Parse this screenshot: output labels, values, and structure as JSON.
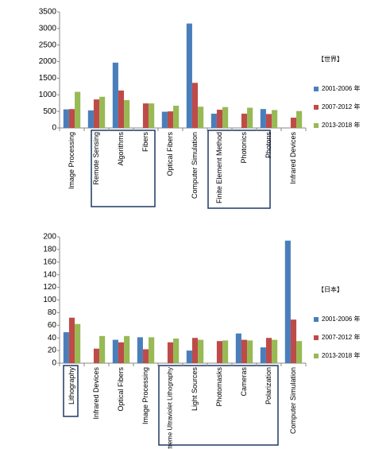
{
  "chart_data": [
    {
      "type": "bar",
      "legend_title": "【世界】",
      "legend": "right",
      "categories": [
        "Image Processing",
        "Remote Sensing",
        "Algorithms",
        "Fibers",
        "Optical Fibers",
        "Computer Simulation",
        "Finite Element Method",
        "Photonics",
        "Photons",
        "Infrared Devices"
      ],
      "series": [
        {
          "name": "2001-2006 年",
          "color": "#4a7ebb",
          "values": [
            560,
            530,
            1970,
            0,
            490,
            3150,
            430,
            0,
            570,
            0
          ]
        },
        {
          "name": "2007-2012 年",
          "color": "#be4b48",
          "values": [
            570,
            860,
            1130,
            740,
            500,
            1360,
            550,
            430,
            420,
            310
          ]
        },
        {
          "name": "2013-2018 年",
          "color": "#98b954",
          "values": [
            1090,
            940,
            840,
            740,
            670,
            640,
            630,
            610,
            540,
            510
          ]
        }
      ],
      "ylim": [
        0,
        3500
      ],
      "yticks": [
        0,
        500,
        1000,
        1500,
        2000,
        2500,
        3000,
        3500
      ]
    },
    {
      "type": "bar",
      "legend_title": "【日本】",
      "legend": "right",
      "categories": [
        "Lithography",
        "Infrared Devices",
        "Optical Fibers",
        "Image Processing",
        "Extreme Ultraviolet Lithography",
        "Light Sources",
        "Photomasks",
        "Cameras",
        "Polarization",
        "Computer Simulation"
      ],
      "series": [
        {
          "name": "2001-2006 年",
          "color": "#4a7ebb",
          "values": [
            49,
            0,
            37,
            41,
            0,
            20,
            0,
            47,
            25,
            194
          ]
        },
        {
          "name": "2007-2012 年",
          "color": "#be4b48",
          "values": [
            72,
            23,
            33,
            22,
            33,
            40,
            35,
            37,
            40,
            69
          ]
        },
        {
          "name": "2013-2018 年",
          "color": "#98b954",
          "values": [
            62,
            43,
            43,
            41,
            39,
            37,
            36,
            36,
            37,
            35
          ]
        }
      ],
      "ylim": [
        0,
        200
      ],
      "yticks": [
        0,
        20,
        40,
        60,
        80,
        100,
        120,
        140,
        160,
        180,
        200
      ]
    }
  ]
}
